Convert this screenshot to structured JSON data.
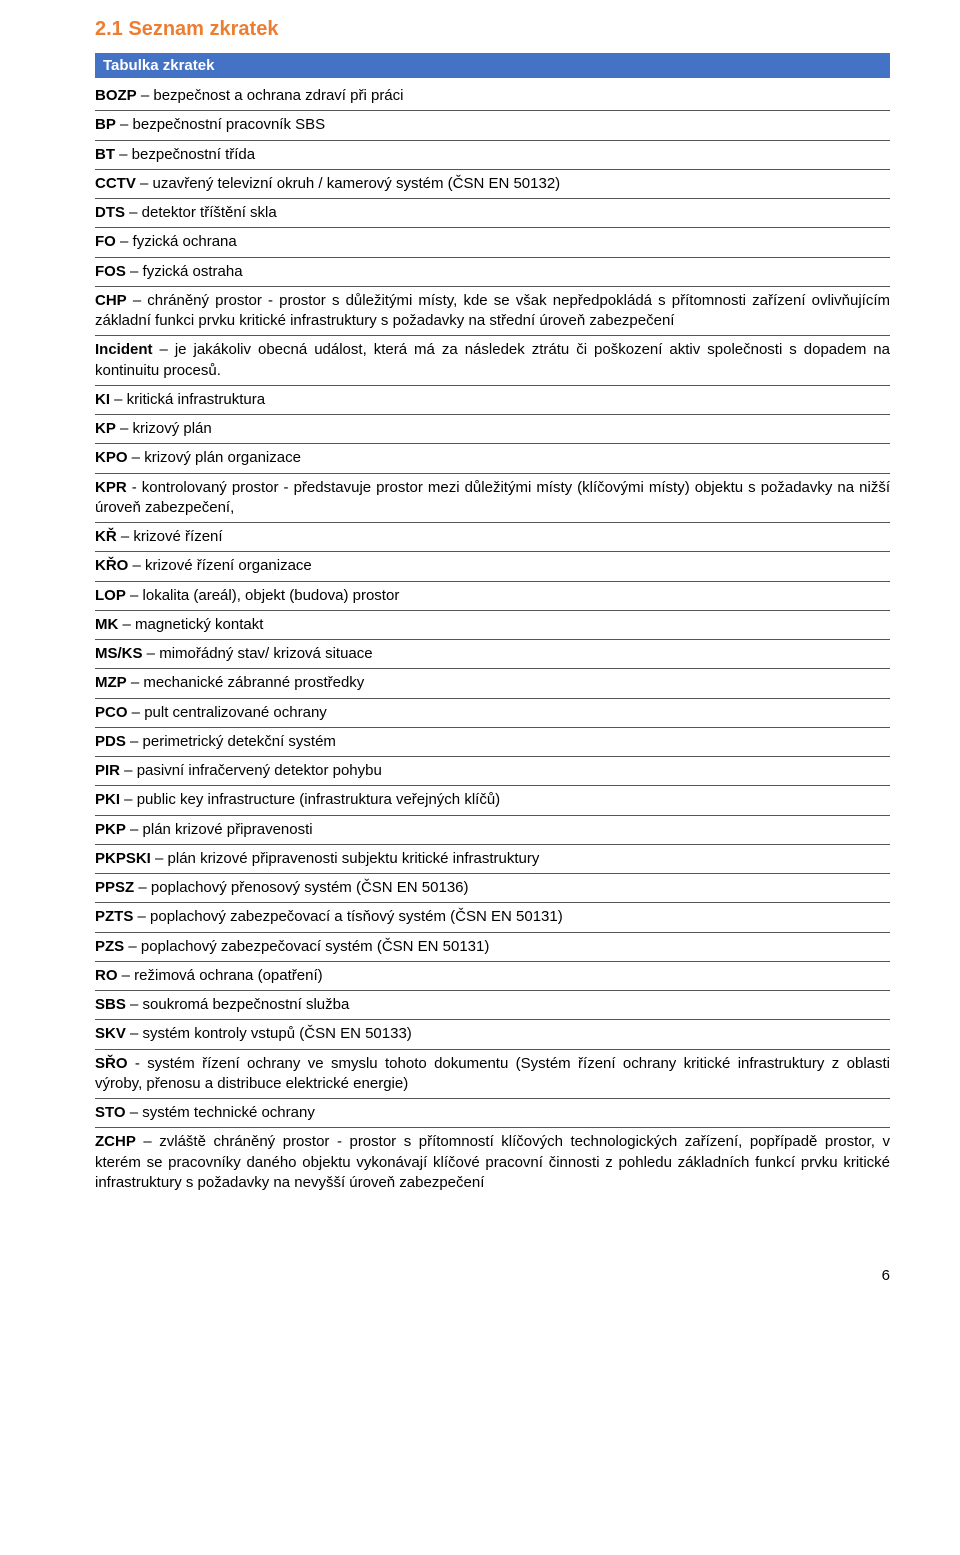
{
  "heading_color": "#ed7d31",
  "heading_text": "2.1  Seznam zkratek",
  "table_header_bg": "#4472c4",
  "table_header_color": "#ffffff",
  "table_header_text": "Tabulka zkratek",
  "entries": [
    {
      "abbr": "BOZP",
      "def": " – bezpečnost a ochrana zdraví při práci"
    },
    {
      "abbr": "BP",
      "def": " – bezpečnostní pracovník SBS"
    },
    {
      "abbr": "BT",
      "def": " – bezpečnostní třída"
    },
    {
      "abbr": "CCTV",
      "def": " – uzavřený televizní okruh / kamerový systém (ČSN EN 50132)"
    },
    {
      "abbr": "DTS",
      "def": " – detektor tříštění skla"
    },
    {
      "abbr": "FO",
      "def": " – fyzická ochrana"
    },
    {
      "abbr": "FOS",
      "def": " – fyzická ostraha"
    },
    {
      "abbr": "CHP",
      "def": " – chráněný prostor - prostor s důležitými místy, kde se však nepředpokládá s přítomnosti zařízení ovlivňujícím základní funkci prvku kritické infrastruktury s požadavky na střední úroveň zabezpečení"
    },
    {
      "abbr": "Incident",
      "def": " – je jakákoliv obecná událost, která má za následek ztrátu či poškození aktiv společnosti s dopadem na kontinuitu procesů."
    },
    {
      "abbr": "KI",
      "def": " – kritická infrastruktura"
    },
    {
      "abbr": "KP",
      "def": " – krizový plán"
    },
    {
      "abbr": "KPO",
      "def": " – krizový plán organizace"
    },
    {
      "abbr": "KPR",
      "def": " - kontrolovaný prostor - představuje prostor mezi důležitými místy (klíčovými místy) objektu s požadavky na nižší úroveň zabezpečení,"
    },
    {
      "abbr": "KŘ",
      "def": " – krizové řízení"
    },
    {
      "abbr": "KŘO",
      "def": " – krizové řízení organizace"
    },
    {
      "abbr": "LOP",
      "def": " – lokalita (areál), objekt (budova) prostor"
    },
    {
      "abbr": "MK",
      "def": " – magnetický kontakt"
    },
    {
      "abbr": "MS/KS",
      "def": " – mimořádný stav/ krizová situace"
    },
    {
      "abbr": "MZP",
      "def": " – mechanické zábranné prostředky"
    },
    {
      "abbr": "PCO",
      "def": " – pult centralizované ochrany"
    },
    {
      "abbr": "PDS",
      "def": " – perimetrický detekční systém"
    },
    {
      "abbr": "PIR",
      "def": " – pasivní infračervený detektor pohybu"
    },
    {
      "abbr": "PKI",
      "def": " – public key infrastructure (infrastruktura veřejných klíčů)"
    },
    {
      "abbr": "PKP",
      "def": " – plán krizové připravenosti"
    },
    {
      "abbr": "PKPSKI",
      "def": " – plán krizové připravenosti subjektu kritické infrastruktury"
    },
    {
      "abbr": "PPSZ",
      "def": " – poplachový přenosový systém (ČSN EN 50136)"
    },
    {
      "abbr": "PZTS",
      "def": " – poplachový zabezpečovací a tísňový systém (ČSN EN 50131)"
    },
    {
      "abbr": "PZS",
      "def": " – poplachový zabezpečovací systém (ČSN EN 50131)"
    },
    {
      "abbr": "RO",
      "def": " – režimová ochrana (opatření)"
    },
    {
      "abbr": "SBS",
      "def": " – soukromá bezpečnostní služba"
    },
    {
      "abbr": "SKV",
      "def": " – systém kontroly vstupů (ČSN EN 50133)"
    },
    {
      "abbr": "SŘO",
      "def": " - systém řízení ochrany ve smyslu tohoto dokumentu (Systém řízení ochrany kritické infrastruktury z oblasti výroby, přenosu a distribuce elektrické energie)"
    },
    {
      "abbr": "STO",
      "def": " – systém technické ochrany"
    },
    {
      "abbr": "ZCHP",
      "def": " – zvláště chráněný prostor - prostor s přítomností klíčových technologických zařízení, popřípadě prostor, v kterém se pracovníky daného objektu vykonávají klíčové pracovní činnosti z pohledu základních funkcí prvku kritické infrastruktury s požadavky na nevyšší úroveň zabezpečení"
    }
  ],
  "page_number": "6"
}
